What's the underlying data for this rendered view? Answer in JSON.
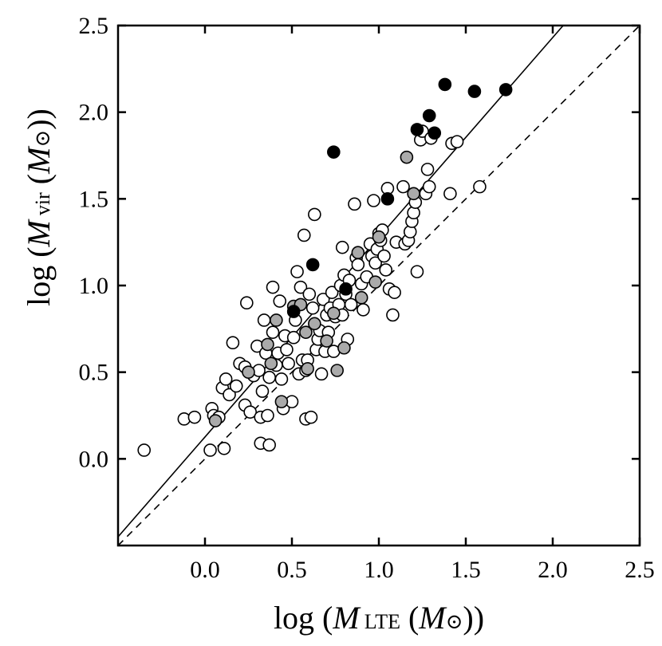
{
  "chart_data": {
    "type": "scatter",
    "title": "",
    "xlabel": {
      "prefix": "log (",
      "symbol": "M",
      "subscript": "LTE",
      "unit_open": " (",
      "unit": "M",
      "unit_sub": "⊙",
      "suffix": "))"
    },
    "ylabel": {
      "prefix": "log (",
      "symbol": "M",
      "subscript": "vir",
      "unit_open": " (",
      "unit": "M",
      "unit_sub": "⊙",
      "suffix": "))"
    },
    "xlim": [
      -0.5,
      2.5
    ],
    "ylim": [
      -0.5,
      2.5
    ],
    "xticks": [
      0.0,
      0.5,
      1.0,
      1.5,
      2.0,
      2.5
    ],
    "yticks": [
      0.0,
      0.5,
      1.0,
      1.5,
      2.0,
      2.5
    ],
    "xtick_labels": [
      "0.0",
      "0.5",
      "1.0",
      "1.5",
      "2.0",
      "2.5"
    ],
    "ytick_labels": [
      "0.0",
      "0.5",
      "1.0",
      "1.5",
      "2.0",
      "2.5"
    ],
    "lines": [
      {
        "name": "best-fit",
        "style": "solid",
        "x": [
          -0.5,
          2.06
        ],
        "y": [
          -0.45,
          2.5
        ]
      },
      {
        "name": "one-to-one",
        "style": "dashed",
        "x": [
          -0.5,
          2.5
        ],
        "y": [
          -0.5,
          2.5
        ]
      }
    ],
    "colors": {
      "open": "#ffffff",
      "gray": "#aaaaaa",
      "black": "#000000"
    },
    "series": [
      {
        "name": "filled-black",
        "fill": "black",
        "points": [
          [
            0.74,
            1.77
          ],
          [
            0.62,
            1.12
          ],
          [
            0.51,
            0.85
          ],
          [
            0.81,
            0.98
          ],
          [
            1.05,
            1.5
          ],
          [
            1.22,
            1.9
          ],
          [
            1.29,
            1.98
          ],
          [
            1.32,
            1.88
          ],
          [
            1.38,
            2.16
          ],
          [
            1.55,
            2.12
          ],
          [
            1.73,
            2.13
          ]
        ]
      },
      {
        "name": "filled-gray",
        "fill": "gray",
        "points": [
          [
            0.06,
            0.22
          ],
          [
            0.25,
            0.5
          ],
          [
            0.36,
            0.66
          ],
          [
            0.38,
            0.55
          ],
          [
            0.41,
            0.8
          ],
          [
            0.44,
            0.33
          ],
          [
            0.51,
            0.88
          ],
          [
            0.55,
            0.89
          ],
          [
            0.58,
            0.73
          ],
          [
            0.59,
            0.52
          ],
          [
            0.63,
            0.78
          ],
          [
            0.7,
            0.68
          ],
          [
            0.74,
            0.84
          ],
          [
            0.76,
            0.51
          ],
          [
            0.8,
            0.64
          ],
          [
            0.88,
            1.19
          ],
          [
            0.9,
            0.93
          ],
          [
            0.98,
            1.02
          ],
          [
            1.0,
            1.28
          ],
          [
            1.16,
            1.74
          ],
          [
            1.2,
            1.53
          ]
        ]
      },
      {
        "name": "open",
        "fill": "open",
        "points": [
          [
            -0.35,
            0.05
          ],
          [
            -0.12,
            0.23
          ],
          [
            -0.06,
            0.24
          ],
          [
            0.03,
            0.05
          ],
          [
            0.04,
            0.29
          ],
          [
            0.05,
            0.25
          ],
          [
            0.08,
            0.24
          ],
          [
            0.11,
            0.06
          ],
          [
            0.1,
            0.41
          ],
          [
            0.12,
            0.46
          ],
          [
            0.14,
            0.37
          ],
          [
            0.16,
            0.67
          ],
          [
            0.18,
            0.42
          ],
          [
            0.2,
            0.55
          ],
          [
            0.23,
            0.53
          ],
          [
            0.23,
            0.31
          ],
          [
            0.24,
            0.9
          ],
          [
            0.26,
            0.27
          ],
          [
            0.28,
            0.48
          ],
          [
            0.3,
            0.65
          ],
          [
            0.31,
            0.51
          ],
          [
            0.32,
            0.09
          ],
          [
            0.32,
            0.24
          ],
          [
            0.33,
            0.39
          ],
          [
            0.34,
            0.8
          ],
          [
            0.35,
            0.61
          ],
          [
            0.36,
            0.25
          ],
          [
            0.37,
            0.08
          ],
          [
            0.37,
            0.47
          ],
          [
            0.39,
            0.99
          ],
          [
            0.39,
            0.73
          ],
          [
            0.41,
            0.54
          ],
          [
            0.42,
            0.61
          ],
          [
            0.43,
            0.91
          ],
          [
            0.44,
            0.46
          ],
          [
            0.45,
            0.29
          ],
          [
            0.46,
            0.71
          ],
          [
            0.47,
            0.63
          ],
          [
            0.48,
            0.55
          ],
          [
            0.5,
            0.33
          ],
          [
            0.51,
            0.7
          ],
          [
            0.52,
            0.8
          ],
          [
            0.53,
            1.08
          ],
          [
            0.54,
            0.49
          ],
          [
            0.55,
            0.99
          ],
          [
            0.56,
            0.57
          ],
          [
            0.57,
            1.29
          ],
          [
            0.58,
            0.23
          ],
          [
            0.58,
            0.51
          ],
          [
            0.59,
            0.57
          ],
          [
            0.6,
            0.95
          ],
          [
            0.61,
            0.24
          ],
          [
            0.62,
            0.87
          ],
          [
            0.63,
            1.41
          ],
          [
            0.64,
            0.63
          ],
          [
            0.65,
            0.69
          ],
          [
            0.66,
            0.74
          ],
          [
            0.67,
            0.49
          ],
          [
            0.68,
            0.92
          ],
          [
            0.69,
            0.62
          ],
          [
            0.7,
            0.83
          ],
          [
            0.71,
            0.73
          ],
          [
            0.72,
            0.87
          ],
          [
            0.73,
            0.96
          ],
          [
            0.74,
            0.62
          ],
          [
            0.75,
            0.82
          ],
          [
            0.77,
            0.89
          ],
          [
            0.78,
            1.0
          ],
          [
            0.79,
            0.83
          ],
          [
            0.79,
            1.22
          ],
          [
            0.8,
            1.06
          ],
          [
            0.81,
            0.95
          ],
          [
            0.82,
            0.69
          ],
          [
            0.83,
            1.03
          ],
          [
            0.84,
            0.89
          ],
          [
            0.86,
            1.47
          ],
          [
            0.87,
            1.16
          ],
          [
            0.88,
            1.12
          ],
          [
            0.9,
            1.01
          ],
          [
            0.91,
            0.86
          ],
          [
            0.93,
            1.05
          ],
          [
            0.95,
            1.24
          ],
          [
            0.96,
            1.17
          ],
          [
            0.97,
            1.49
          ],
          [
            0.98,
            1.13
          ],
          [
            0.99,
            1.21
          ],
          [
            1.0,
            1.3
          ],
          [
            1.01,
            1.26
          ],
          [
            1.02,
            1.32
          ],
          [
            1.03,
            1.17
          ],
          [
            1.04,
            1.09
          ],
          [
            1.05,
            1.56
          ],
          [
            1.06,
            0.98
          ],
          [
            1.08,
            0.83
          ],
          [
            1.09,
            0.96
          ],
          [
            1.1,
            1.25
          ],
          [
            1.14,
            1.57
          ],
          [
            1.15,
            1.24
          ],
          [
            1.17,
            1.26
          ],
          [
            1.18,
            1.31
          ],
          [
            1.19,
            1.37
          ],
          [
            1.2,
            1.42
          ],
          [
            1.21,
            1.48
          ],
          [
            1.22,
            1.08
          ],
          [
            1.24,
            1.84
          ],
          [
            1.25,
            1.89
          ],
          [
            1.27,
            1.53
          ],
          [
            1.28,
            1.67
          ],
          [
            1.29,
            1.57
          ],
          [
            1.3,
            1.85
          ],
          [
            1.41,
            1.53
          ],
          [
            1.42,
            1.82
          ],
          [
            1.45,
            1.83
          ],
          [
            1.58,
            1.57
          ]
        ]
      }
    ]
  }
}
